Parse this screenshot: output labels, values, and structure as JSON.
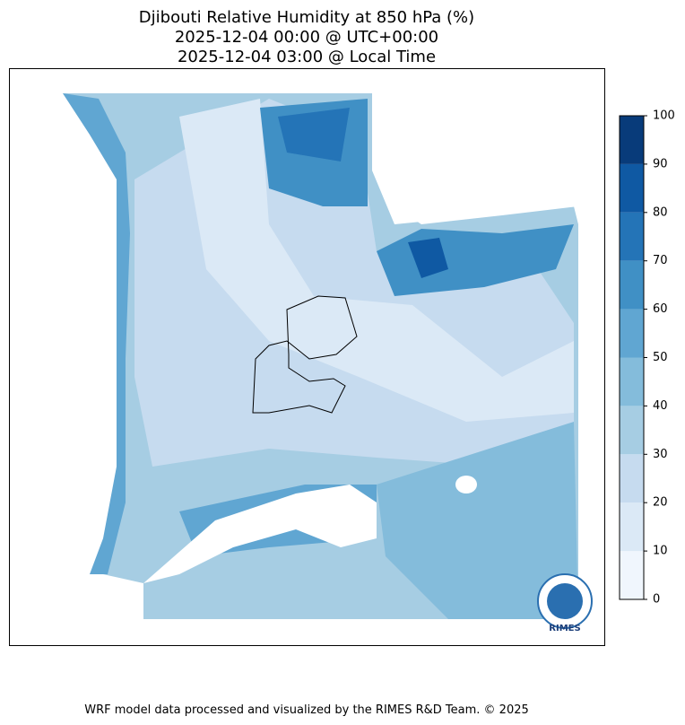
{
  "title": [
    "Djibouti Relative Humidity at 850 hPa (%)",
    "2025-12-04 00:00 @ UTC+00:00",
    "2025-12-04 03:00 @ Local Time"
  ],
  "colorbar": {
    "levels": [
      0,
      10,
      20,
      30,
      40,
      50,
      60,
      70,
      80,
      90,
      100
    ],
    "colors": [
      "#f0f6fd",
      "#dbe9f6",
      "#c6dbef",
      "#a6cde3",
      "#84bcdb",
      "#60a6d2",
      "#4090c5",
      "#2474b7",
      "#0f59a3",
      "#083b7a"
    ]
  },
  "logo": "RIMES",
  "footer": "WRF model data processed and visualized by the RIMES R&D Team. © 2025"
}
